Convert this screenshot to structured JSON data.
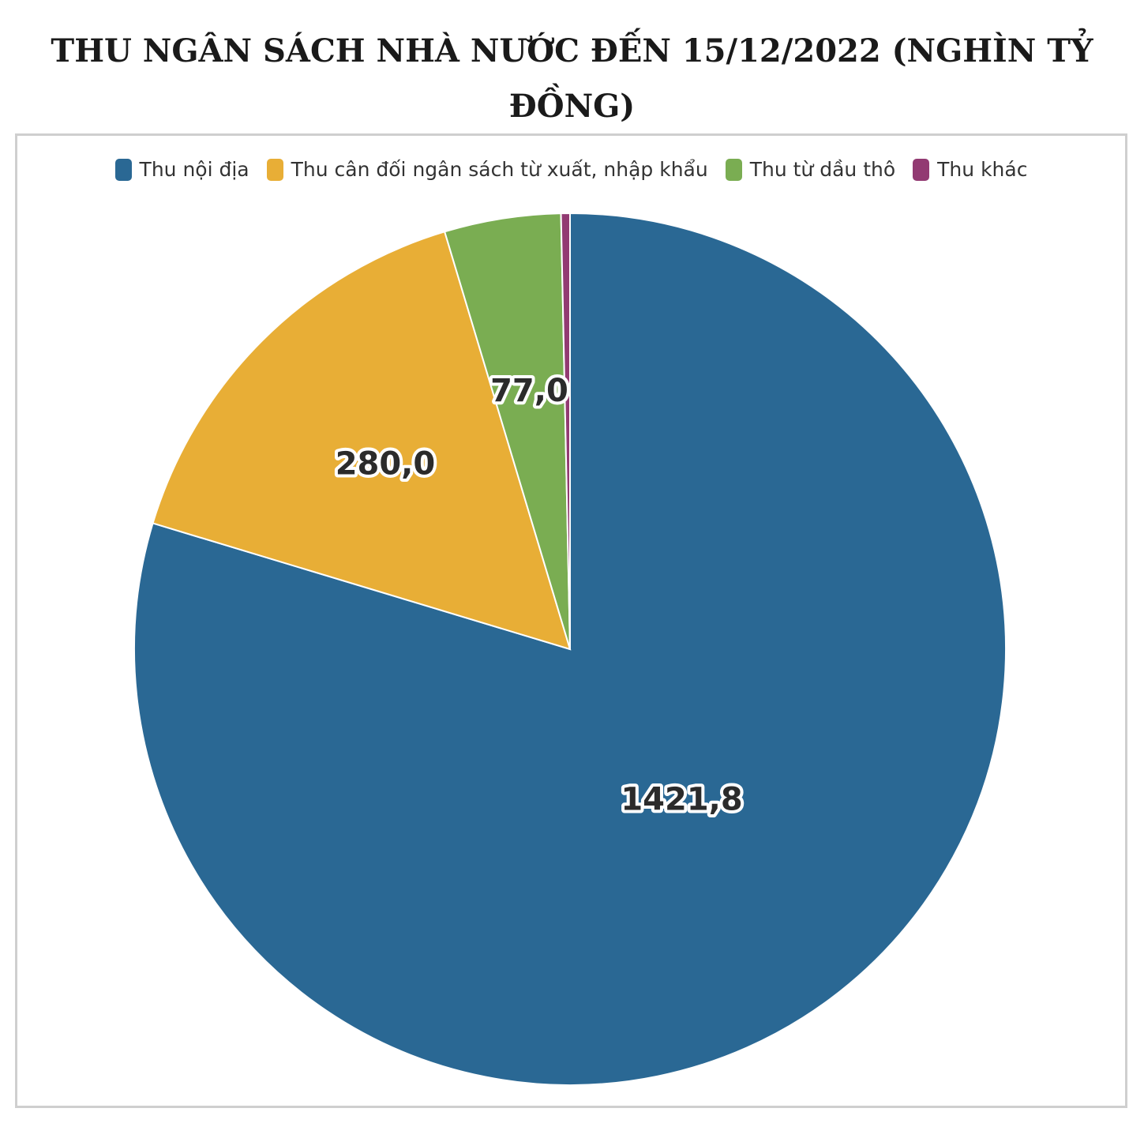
{
  "title": "THU NGÂN SÁCH NHÀ NƯỚC ĐẾN 15/12/2022 (NGHÌN TỶ ĐỒNG)",
  "chart_data": {
    "type": "pie",
    "title": "THU NGÂN SÁCH NHÀ NƯỚC ĐẾN 15/12/2022 (NGHÌN TỶ ĐỒNG)",
    "legend_position": "top",
    "slices": [
      {
        "name": "Thu nội địa",
        "value": 1421.8,
        "label": "1421,8",
        "color": "#2a6894"
      },
      {
        "name": "Thu cân đối ngân sách từ xuất, nhập khẩu",
        "value": 280.0,
        "label": "280,0",
        "color": "#e8ae36"
      },
      {
        "name": "Thu từ dầu thô",
        "value": 77.0,
        "label": "77,0",
        "color": "#7aad52"
      },
      {
        "name": "Thu khác",
        "value": 5.9,
        "label": "",
        "color": "#923a72"
      }
    ]
  }
}
